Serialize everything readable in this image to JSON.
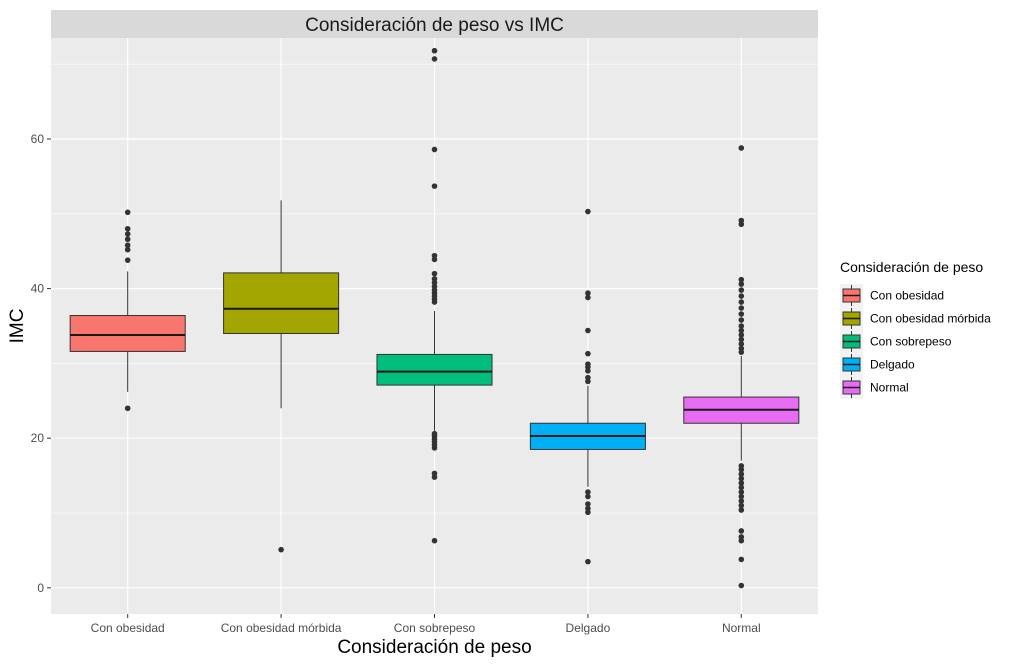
{
  "chart_data": {
    "type": "boxplot",
    "title": "Consideración de peso vs IMC",
    "xlabel": "Consideración de peso",
    "ylabel": "IMC",
    "ylim": [
      -3.5,
      73.5
    ],
    "yticks": [
      0,
      20,
      40,
      60
    ],
    "grid": true,
    "legend": {
      "title": "Consideración de peso",
      "position": "right"
    },
    "categories": [
      "Con obesidad",
      "Con obesidad mórbida",
      "Con sobrepeso",
      "Delgado",
      "Normal"
    ],
    "series": [
      {
        "name": "Con obesidad",
        "color": "#F8766D",
        "whisker_low": 26.2,
        "q1": 31.6,
        "median": 33.8,
        "q3": 36.4,
        "whisker_high": 42.3,
        "outliers": [
          24.0,
          43.8,
          45.2,
          45.8,
          46.6,
          47.3,
          48.0,
          50.2
        ]
      },
      {
        "name": "Con obesidad mórbida",
        "color": "#A3A500",
        "whisker_low": 24.0,
        "q1": 34.0,
        "median": 37.3,
        "q3": 42.1,
        "whisker_high": 51.8,
        "outliers": [
          5.1
        ]
      },
      {
        "name": "Con sobrepeso",
        "color": "#00BF7D",
        "whisker_low": 21.0,
        "q1": 27.1,
        "median": 28.9,
        "q3": 31.2,
        "whisker_high": 37.0,
        "outliers": [
          6.3,
          14.8,
          15.3,
          18.7,
          19.1,
          19.5,
          19.9,
          20.3,
          20.6,
          38.2,
          38.6,
          39.0,
          39.4,
          39.8,
          40.3,
          40.8,
          41.3,
          42.0,
          43.9,
          44.4,
          53.7,
          58.6,
          70.7,
          71.8
        ]
      },
      {
        "name": "Delgado",
        "color": "#00B0F6",
        "whisker_low": 13.5,
        "q1": 18.5,
        "median": 20.3,
        "q3": 22.0,
        "whisker_high": 27.0,
        "outliers": [
          3.5,
          10.1,
          10.6,
          11.2,
          12.2,
          12.8,
          27.6,
          28.1,
          29.0,
          29.5,
          29.9,
          31.3,
          34.4,
          38.8,
          39.4,
          50.3
        ]
      },
      {
        "name": "Normal",
        "color": "#E76BF3",
        "whisker_low": 17.0,
        "q1": 22.0,
        "median": 23.8,
        "q3": 25.5,
        "whisker_high": 31.0,
        "outliers": [
          0.3,
          3.8,
          6.3,
          6.8,
          7.6,
          10.4,
          11.0,
          11.6,
          12.2,
          12.8,
          13.4,
          14.0,
          14.6,
          15.2,
          15.8,
          16.3,
          31.5,
          32.0,
          32.6,
          33.2,
          33.8,
          34.4,
          35.0,
          35.8,
          36.6,
          37.4,
          38.2,
          39.0,
          39.8,
          40.6,
          41.2,
          48.6,
          49.1,
          58.8
        ]
      }
    ]
  }
}
